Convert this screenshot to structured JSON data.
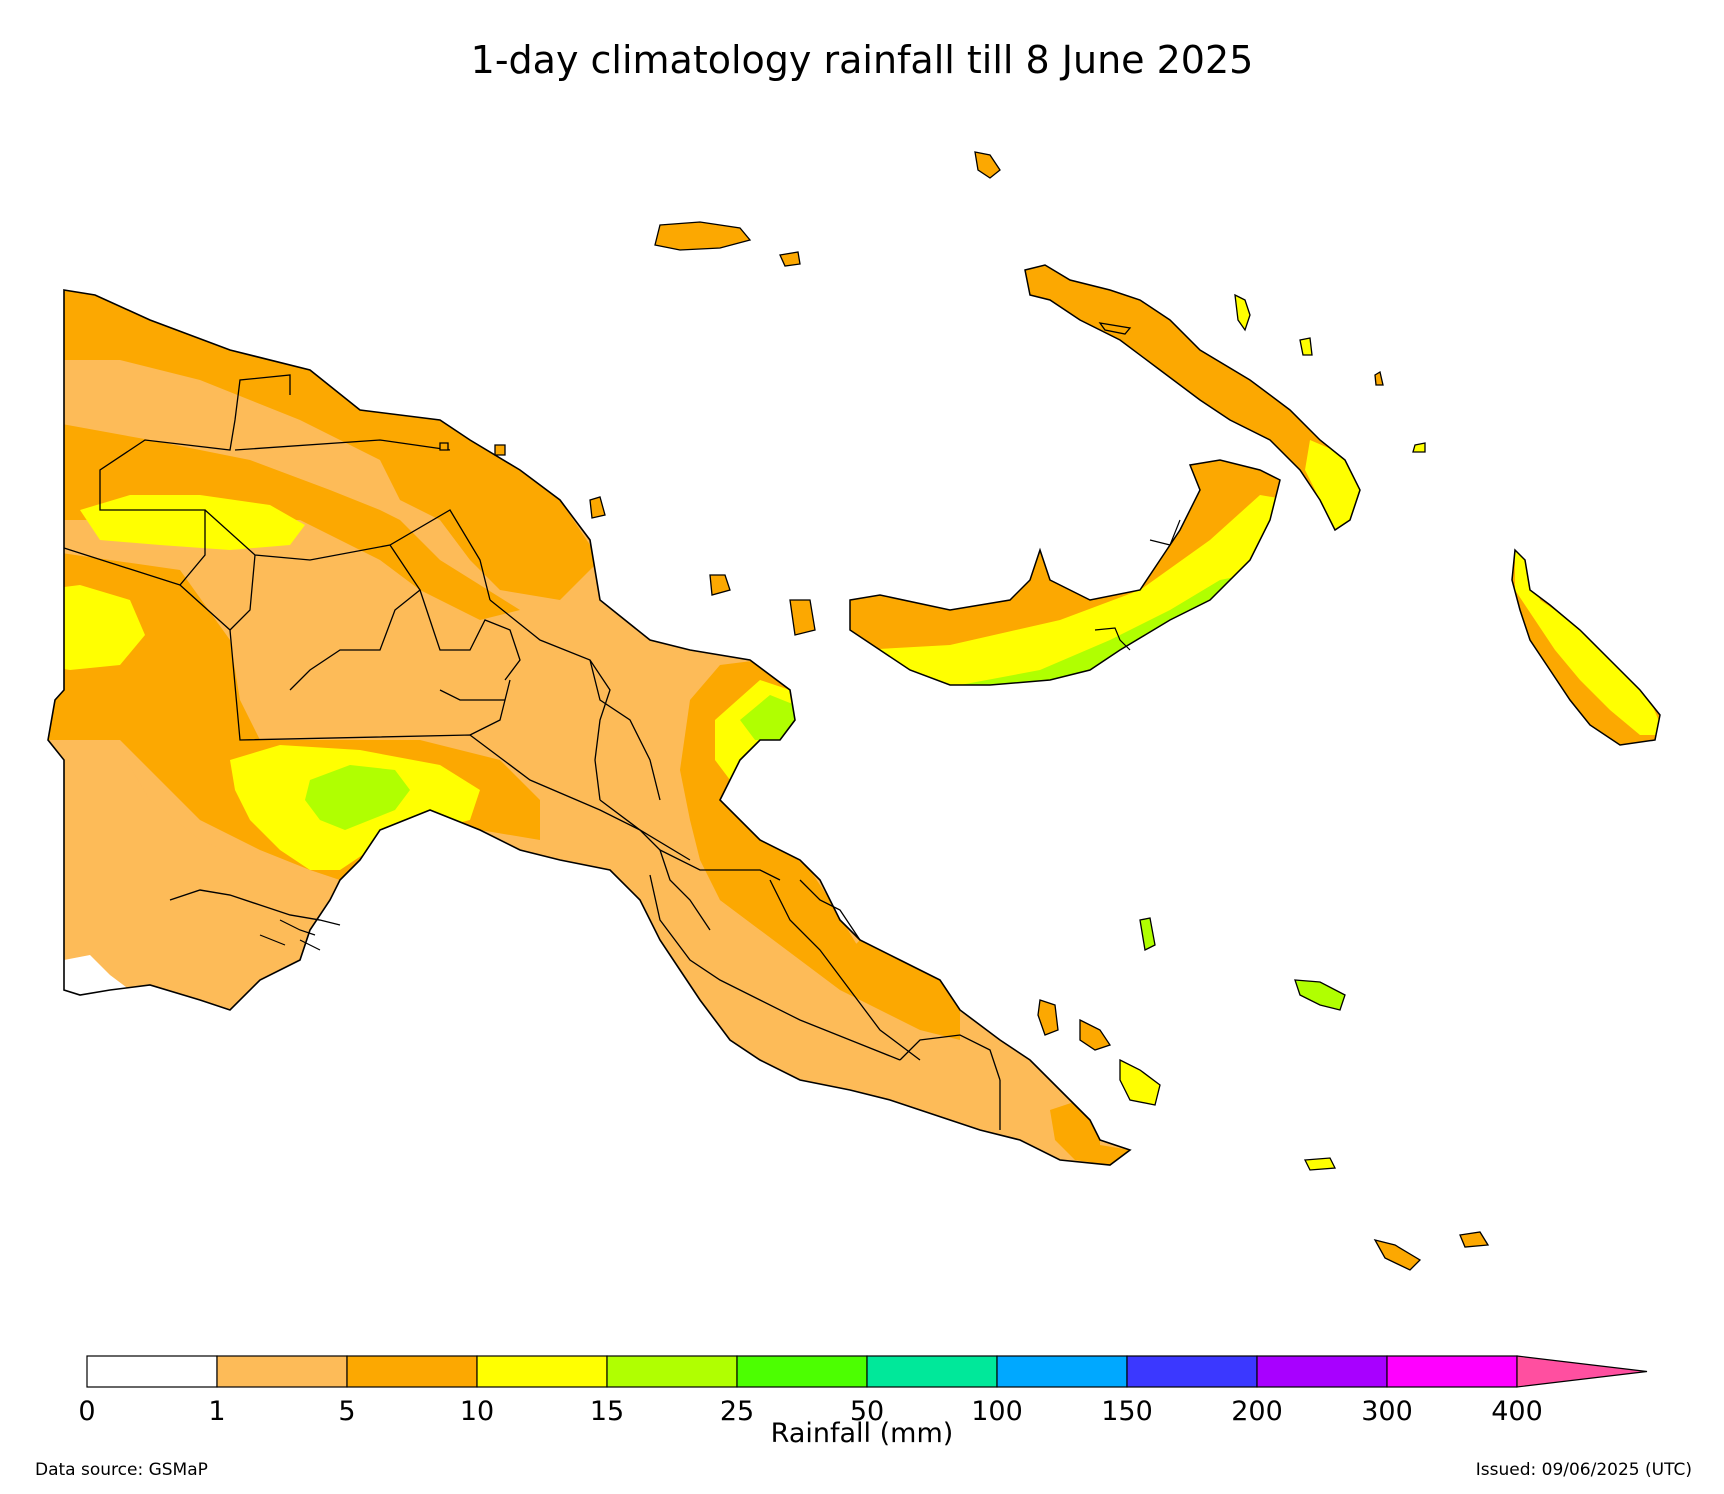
{
  "title": "1-day climatology rainfall till 8 June 2025",
  "colorbar": {
    "label": "Rainfall (mm)",
    "ticks": [
      "0",
      "1",
      "5",
      "10",
      "15",
      "25",
      "50",
      "100",
      "150",
      "200",
      "300",
      "400"
    ],
    "colors": [
      "#ffffff",
      "#fdbb58",
      "#fca801",
      "#ffff01",
      "#b0ff01",
      "#4cff01",
      "#00e89a",
      "#00a8ff",
      "#3b38ff",
      "#a800ff",
      "#ff00ff"
    ],
    "extend_color": "#ff4fa0"
  },
  "palette": {
    "c1_5": "#fdbb58",
    "c5_10": "#fca801",
    "c10_15": "#ffff01",
    "c15_25": "#b0ff01"
  },
  "source": "Data source: GSMaP",
  "issued": "Issued: 09/06/2025 (UTC)"
}
